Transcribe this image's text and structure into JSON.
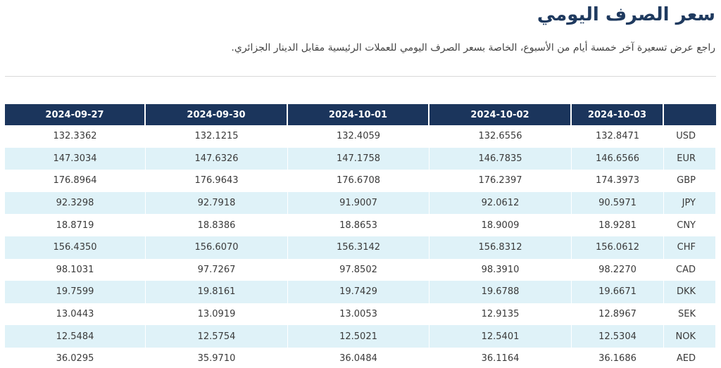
{
  "page": {
    "title": "سعر الصرف اليومي",
    "subtitle": "راجع عرض تسعيرة آخر خمسة أيام من الأسبوع، الخاصة بسعر الصرف اليومي للعملات الرئيسية مقابل الدينار الجزائري."
  },
  "table": {
    "dates": [
      "2024-09-27",
      "2024-09-30",
      "2024-10-01",
      "2024-10-02",
      "2024-10-03"
    ],
    "currency_header": "",
    "rows": [
      {
        "code": "USD",
        "values": [
          "132.3362",
          "132.1215",
          "132.4059",
          "132.6556",
          "132.8471"
        ]
      },
      {
        "code": "EUR",
        "values": [
          "147.3034",
          "147.6326",
          "147.1758",
          "146.7835",
          "146.6566"
        ]
      },
      {
        "code": "GBP",
        "values": [
          "176.8964",
          "176.9643",
          "176.6708",
          "176.2397",
          "174.3973"
        ]
      },
      {
        "code": "JPY",
        "values": [
          "92.3298",
          "92.7918",
          "91.9007",
          "92.0612",
          "90.5971"
        ]
      },
      {
        "code": "CNY",
        "values": [
          "18.8719",
          "18.8386",
          "18.8653",
          "18.9009",
          "18.9281"
        ]
      },
      {
        "code": "CHF",
        "values": [
          "156.4350",
          "156.6070",
          "156.3142",
          "156.8312",
          "156.0612"
        ]
      },
      {
        "code": "CAD",
        "values": [
          "98.1031",
          "97.7267",
          "97.8502",
          "98.3910",
          "98.2270"
        ]
      },
      {
        "code": "DKK",
        "values": [
          "19.7599",
          "19.8161",
          "19.7429",
          "19.6788",
          "19.6671"
        ]
      },
      {
        "code": "SEK",
        "values": [
          "13.0443",
          "13.0919",
          "13.0053",
          "12.9135",
          "12.8967"
        ]
      },
      {
        "code": "NOK",
        "values": [
          "12.5484",
          "12.5754",
          "12.5021",
          "12.5401",
          "12.5304"
        ]
      },
      {
        "code": "AED",
        "values": [
          "36.0295",
          "35.9710",
          "36.0484",
          "36.1164",
          "36.1686"
        ]
      }
    ]
  },
  "colors": {
    "header_bg": "#1b355c",
    "stripe": "#dff2f8",
    "title": "#1f3a5f"
  }
}
